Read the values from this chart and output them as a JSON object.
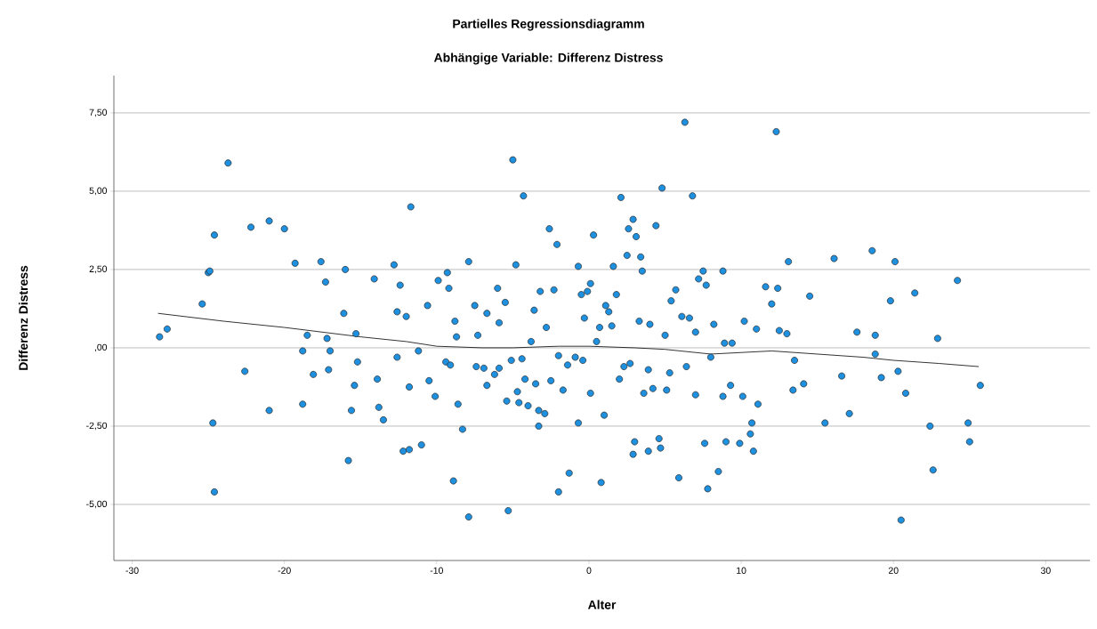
{
  "chart_data": {
    "type": "scatter",
    "title": "Partielles Regressionsdiagramm",
    "subtitle": "Abhängige Variable: Differenz Distress",
    "xlabel": "Alter",
    "ylabel": "Differenz Distress",
    "xlim": [
      -31.2,
      32.9
    ],
    "ylim": [
      -6.79,
      8.69
    ],
    "xticks": [
      -30,
      -20,
      -10,
      0,
      10,
      20,
      30
    ],
    "yticks": [
      {
        "value": -5,
        "label": "-5,00"
      },
      {
        "value": -2.5,
        "label": "-2,50"
      },
      {
        "value": 0,
        "label": ",00"
      },
      {
        "value": 2.5,
        "label": "2,50"
      },
      {
        "value": 5,
        "label": "5,00"
      },
      {
        "value": 7.5,
        "label": "7,50"
      }
    ],
    "grid": "y",
    "series": [
      {
        "color": "#1e90e0",
        "marker": "circle",
        "x": [
          -28.2,
          -27.7,
          -25.4,
          -25.0,
          -24.9,
          -24.6,
          -24.7,
          -24.6,
          -23.7,
          -22.6,
          -22.2,
          -21.0,
          -21.0,
          -20.0,
          -19.3,
          -18.8,
          -18.8,
          -18.5,
          -18.1,
          -17.6,
          -17.3,
          -17.2,
          -17.0,
          -17.1,
          -16.1,
          -16.0,
          -15.8,
          -15.6,
          -15.4,
          -15.3,
          -15.2,
          -14.1,
          -13.9,
          -13.8,
          -13.5,
          -12.8,
          -12.6,
          -12.6,
          -12.4,
          -12.2,
          -12.0,
          -11.8,
          -11.8,
          -11.7,
          -11.2,
          -11.0,
          -10.6,
          -10.5,
          -10.1,
          -9.9,
          -9.4,
          -9.3,
          -9.2,
          -9.1,
          -8.9,
          -8.8,
          -8.7,
          -8.6,
          -8.3,
          -7.9,
          -7.9,
          -7.5,
          -7.4,
          -7.3,
          -6.9,
          -6.7,
          -6.7,
          -6.2,
          -6.0,
          -5.9,
          -5.9,
          -5.5,
          -5.4,
          -5.3,
          -5.1,
          -5.0,
          -4.8,
          -4.7,
          -4.6,
          -4.4,
          -4.3,
          -4.2,
          -4.0,
          -3.8,
          -3.6,
          -3.5,
          -3.3,
          -3.3,
          -3.2,
          -2.9,
          -2.8,
          -2.6,
          -2.5,
          -2.3,
          -2.1,
          -2.0,
          -2.0,
          -1.7,
          -1.4,
          -1.3,
          -0.9,
          -0.7,
          -0.7,
          -0.5,
          -0.4,
          -0.3,
          -0.1,
          0.1,
          0.1,
          0.3,
          0.5,
          0.7,
          0.8,
          1.0,
          1.1,
          1.3,
          1.5,
          1.6,
          1.8,
          2.0,
          2.1,
          2.3,
          2.5,
          2.6,
          2.7,
          2.9,
          3.0,
          2.9,
          3.1,
          3.3,
          3.4,
          3.5,
          3.6,
          3.9,
          3.9,
          4.0,
          4.2,
          4.4,
          4.6,
          4.7,
          4.8,
          5.0,
          5.1,
          5.3,
          5.4,
          5.7,
          5.9,
          6.1,
          6.3,
          6.4,
          6.6,
          6.8,
          7.0,
          7.0,
          7.2,
          7.5,
          7.6,
          7.7,
          7.8,
          8.0,
          8.2,
          8.5,
          8.8,
          8.8,
          8.9,
          9.0,
          9.3,
          9.4,
          9.9,
          10.1,
          10.2,
          10.6,
          10.7,
          10.8,
          11.0,
          11.1,
          11.6,
          12.0,
          12.3,
          12.4,
          12.5,
          13.1,
          13.0,
          13.4,
          13.5,
          14.1,
          14.5,
          15.5,
          16.1,
          16.6,
          17.1,
          17.6,
          18.6,
          18.8,
          18.8,
          19.2,
          19.8,
          20.1,
          20.3,
          20.5,
          20.8,
          21.4,
          22.4,
          22.6,
          22.9,
          24.2,
          24.9,
          25.0,
          25.7
        ],
        "values": [
          0.35,
          0.6,
          1.4,
          2.4,
          2.45,
          3.6,
          -2.4,
          -4.6,
          5.9,
          -0.75,
          3.85,
          4.05,
          -2.0,
          3.8,
          2.7,
          -0.1,
          -1.8,
          0.4,
          -0.85,
          2.75,
          2.1,
          0.3,
          -0.1,
          -0.7,
          1.1,
          2.5,
          -3.6,
          -2.0,
          -1.2,
          0.45,
          -0.45,
          2.2,
          -1.0,
          -1.9,
          -2.3,
          2.65,
          1.15,
          -0.3,
          2.0,
          -3.3,
          1.0,
          -1.25,
          -3.25,
          4.5,
          -0.1,
          -3.1,
          1.35,
          -1.05,
          -1.55,
          2.15,
          -0.45,
          2.4,
          1.9,
          -0.55,
          -4.25,
          0.85,
          0.35,
          -1.8,
          -2.6,
          2.75,
          -5.4,
          1.35,
          -0.6,
          0.4,
          -0.65,
          1.1,
          -1.2,
          -0.85,
          1.9,
          0.8,
          -0.65,
          1.45,
          -1.7,
          -5.2,
          -0.4,
          6.0,
          2.65,
          -1.4,
          -1.75,
          -0.35,
          4.85,
          -1.0,
          -1.85,
          0.2,
          1.2,
          -1.15,
          -2.0,
          -2.5,
          1.8,
          -2.1,
          0.65,
          3.8,
          -1.05,
          1.85,
          3.3,
          -0.25,
          -4.6,
          -1.35,
          -0.55,
          -4.0,
          -0.3,
          2.6,
          -2.4,
          1.7,
          -0.4,
          0.95,
          1.8,
          2.05,
          -1.45,
          3.6,
          0.2,
          0.65,
          -4.3,
          -2.15,
          1.35,
          1.15,
          0.7,
          2.6,
          1.7,
          -1.0,
          4.8,
          -0.6,
          2.95,
          3.8,
          -0.5,
          4.1,
          -3.0,
          -3.4,
          3.55,
          0.85,
          2.9,
          2.45,
          -1.45,
          -3.3,
          -0.7,
          0.75,
          -1.3,
          3.9,
          -2.9,
          -3.2,
          5.1,
          0.4,
          -1.35,
          -0.8,
          1.5,
          1.85,
          -4.15,
          1.0,
          7.2,
          -0.6,
          0.95,
          4.85,
          0.5,
          -1.5,
          2.2,
          2.45,
          -3.05,
          2.0,
          -4.5,
          -0.3,
          0.75,
          -3.95,
          2.45,
          -1.55,
          0.15,
          -3.0,
          -1.2,
          0.15,
          -3.05,
          -1.55,
          0.85,
          -2.75,
          -2.4,
          -3.3,
          0.6,
          -1.8,
          1.95,
          1.4,
          6.9,
          1.9,
          0.55,
          2.75,
          0.45,
          -1.35,
          -0.4,
          -1.15,
          1.65,
          -2.4,
          2.85,
          -0.9,
          -2.1,
          0.5,
          3.1,
          0.4,
          -0.2,
          -0.95,
          1.5,
          2.75,
          -0.75,
          -5.5,
          -1.45,
          1.75,
          -2.5,
          -3.9,
          0.3,
          2.15,
          -2.4,
          -3.0,
          -1.2
        ]
      },
      {
        "type": "line",
        "color": "#000000",
        "marker": "none",
        "x": [
          -28.3,
          -24,
          -20,
          -15,
          -12,
          -10,
          -7,
          -5,
          -2,
          0,
          3,
          5,
          8,
          10,
          12,
          15,
          18,
          20,
          23,
          25.6
        ],
        "values": [
          1.1,
          0.85,
          0.65,
          0.35,
          0.2,
          0.05,
          0.0,
          0.0,
          0.05,
          0.05,
          0.0,
          -0.05,
          -0.2,
          -0.15,
          -0.1,
          -0.2,
          -0.3,
          -0.4,
          -0.5,
          -0.6
        ]
      }
    ]
  }
}
